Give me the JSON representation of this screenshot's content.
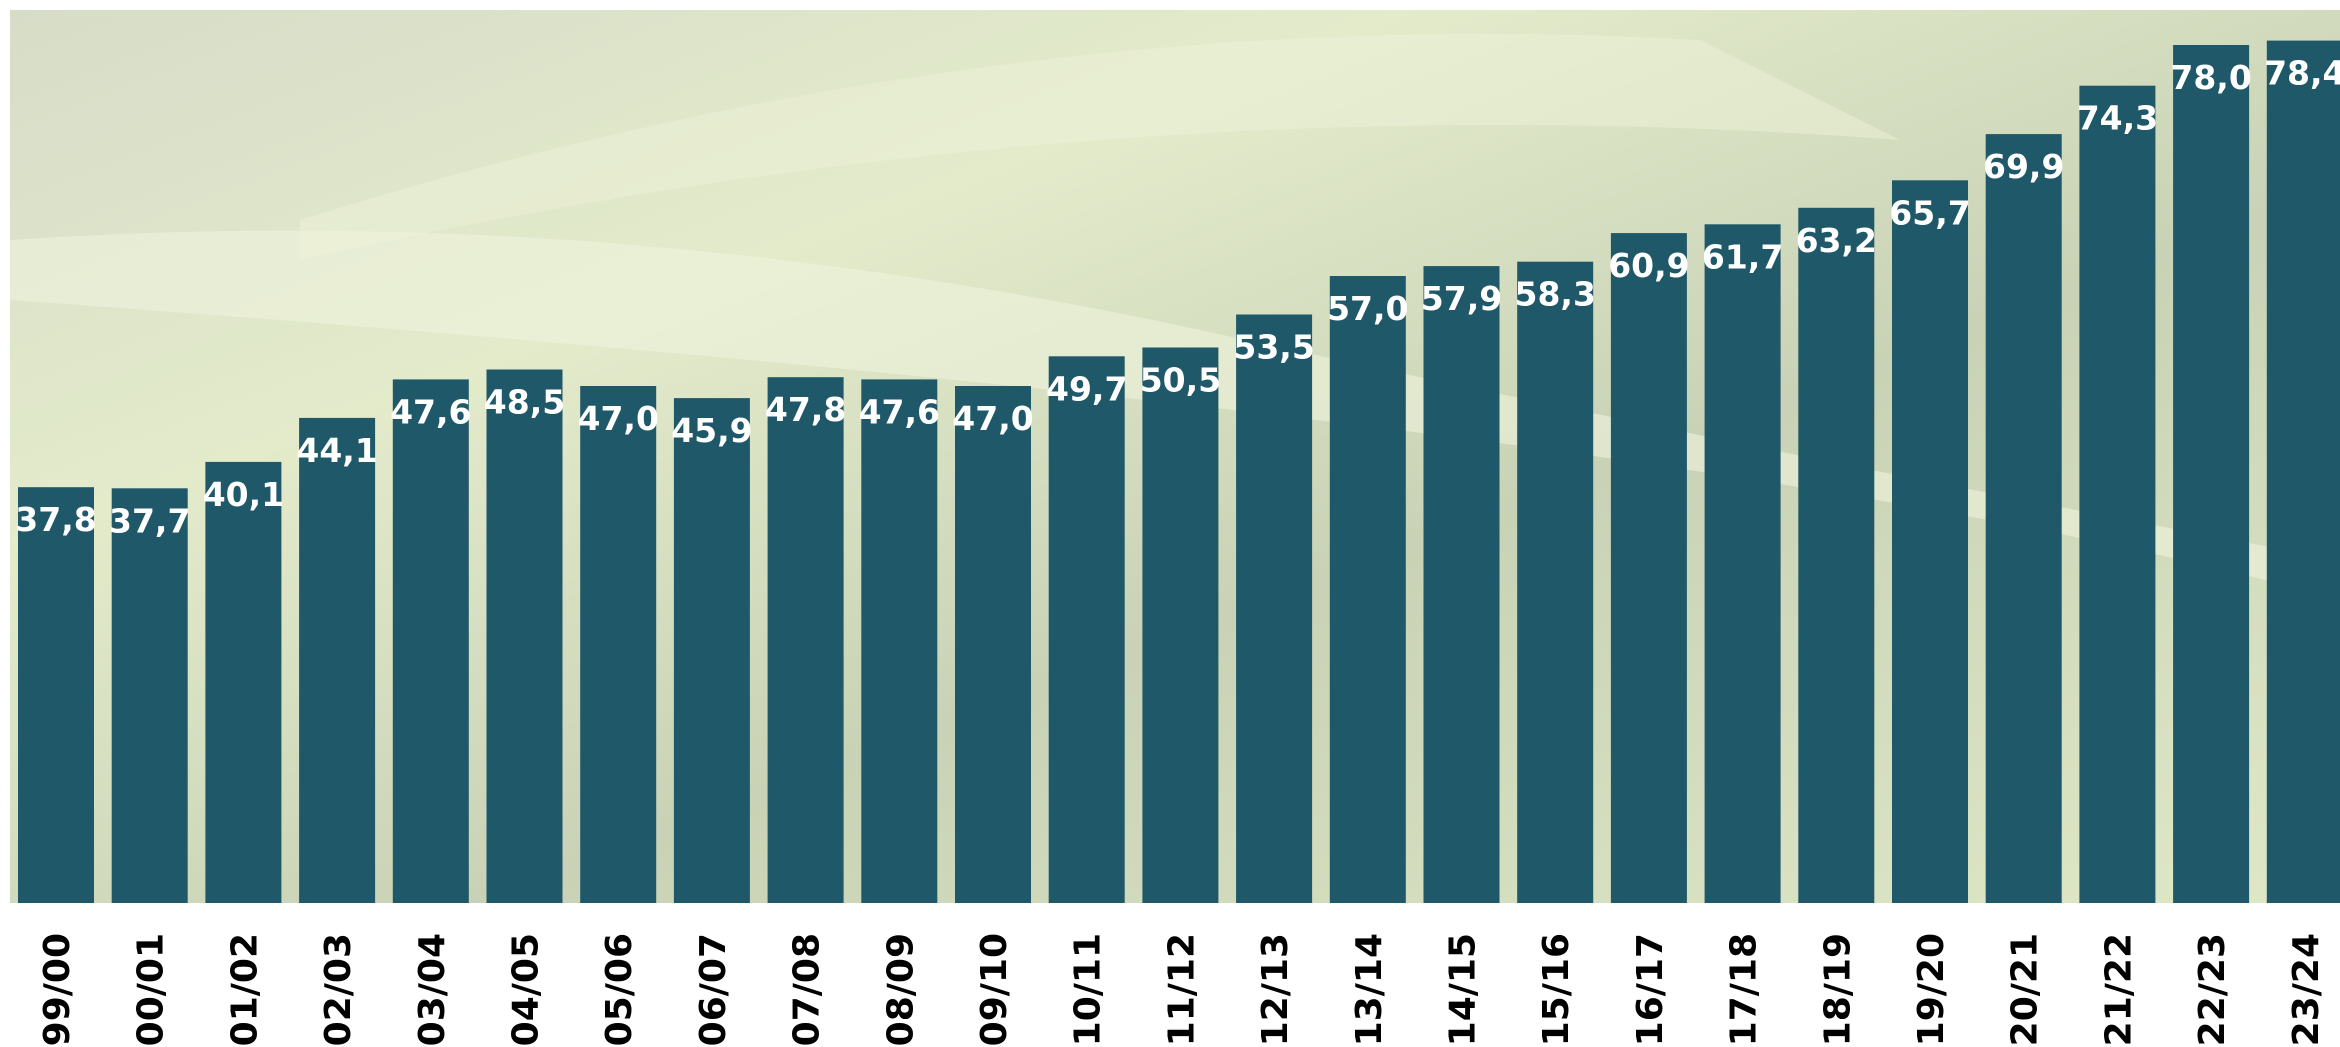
{
  "chart_data": {
    "type": "bar",
    "categories": [
      "99/00",
      "00/01",
      "01/02",
      "02/03",
      "03/04",
      "04/05",
      "05/06",
      "06/07",
      "07/08",
      "08/09",
      "09/10",
      "10/11",
      "11/12",
      "12/13",
      "13/14",
      "14/15",
      "15/16",
      "16/17",
      "17/18",
      "18/19",
      "19/20",
      "20/21",
      "21/22",
      "22/23",
      "23/24"
    ],
    "values": [
      37.8,
      37.7,
      40.1,
      44.1,
      47.6,
      48.5,
      47.0,
      45.9,
      47.8,
      47.6,
      47.0,
      49.7,
      50.5,
      53.5,
      57.0,
      57.9,
      58.3,
      60.9,
      61.7,
      63.2,
      65.7,
      69.9,
      74.3,
      78.0,
      78.4
    ],
    "value_labels": [
      "37,8",
      "37,7",
      "40,1",
      "44,1",
      "47,6",
      "48,5",
      "47,0",
      "45,9",
      "47,8",
      "47,6",
      "47,0",
      "49,7",
      "50,5",
      "53,5",
      "57,0",
      "57,9",
      "58,3",
      "60,9",
      "61,7",
      "63,2",
      "65,7",
      "69,9",
      "74,3",
      "78,0",
      "78,4"
    ],
    "color": "#1f5868"
  }
}
